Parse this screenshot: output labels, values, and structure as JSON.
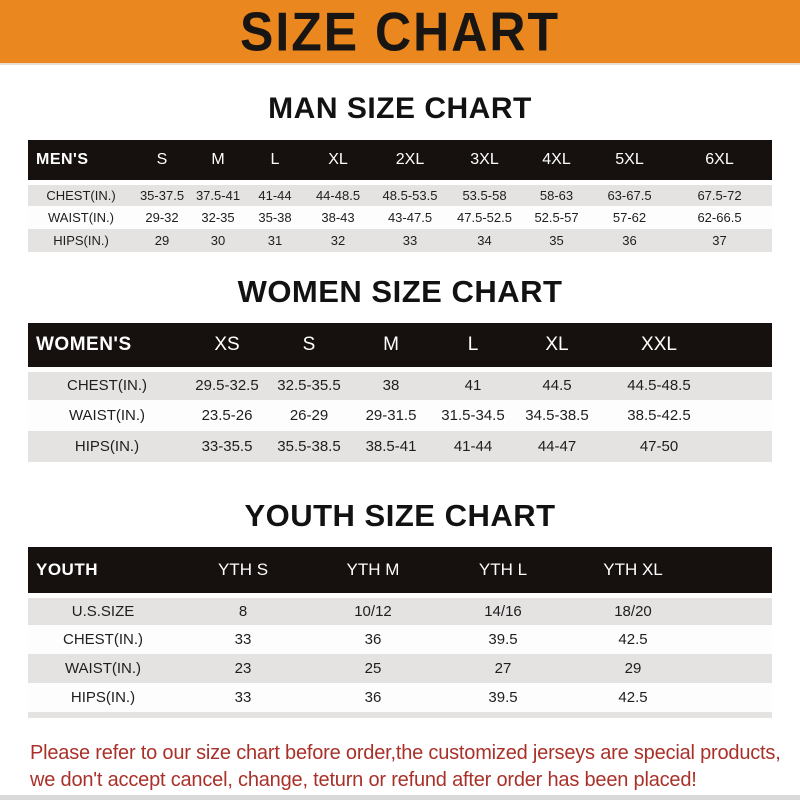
{
  "banner": {
    "title": "SIZE CHART",
    "bg_color": "#EA871E",
    "text_color": "#181512"
  },
  "sections": {
    "men": {
      "title": "MAN SIZE CHART",
      "table": {
        "label": "MEN'S",
        "columns": [
          "S",
          "M",
          "L",
          "XL",
          "2XL",
          "3XL",
          "4XL",
          "5XL",
          "6XL"
        ],
        "rows": [
          {
            "label": "CHEST(IN.)",
            "values": [
              "35-37.5",
              "37.5-41",
              "41-44",
              "44-48.5",
              "48.5-53.5",
              "53.5-58",
              "58-63",
              "63-67.5",
              "67.5-72"
            ]
          },
          {
            "label": "WAIST(IN.)",
            "values": [
              "29-32",
              "32-35",
              "35-38",
              "38-43",
              "43-47.5",
              "47.5-52.5",
              "52.5-57",
              "57-62",
              "62-66.5"
            ]
          },
          {
            "label": "HIPS(IN.)",
            "values": [
              "29",
              "30",
              "31",
              "32",
              "33",
              "34",
              "35",
              "36",
              "37"
            ]
          }
        ]
      }
    },
    "women": {
      "title": "WOMEN SIZE CHART",
      "table": {
        "label": "WOMEN'S",
        "columns": [
          "XS",
          "S",
          "M",
          "L",
          "XL",
          "XXL"
        ],
        "rows": [
          {
            "label": "CHEST(IN.)",
            "values": [
              "29.5-32.5",
              "32.5-35.5",
              "38",
              "41",
              "44.5",
              "44.5-48.5"
            ]
          },
          {
            "label": "WAIST(IN.)",
            "values": [
              "23.5-26",
              "26-29",
              "29-31.5",
              "31.5-34.5",
              "34.5-38.5",
              "38.5-42.5"
            ]
          },
          {
            "label": "HIPS(IN.)",
            "values": [
              "33-35.5",
              "35.5-38.5",
              "38.5-41",
              "41-44",
              "44-47",
              "47-50"
            ]
          }
        ]
      }
    },
    "youth": {
      "title": "YOUTH SIZE CHART",
      "table": {
        "label": "YOUTH",
        "columns": [
          "YTH S",
          "YTH M",
          "YTH L",
          "YTH XL"
        ],
        "rows": [
          {
            "label": "U.S.SIZE",
            "values": [
              "8",
              "10/12",
              "14/16",
              "18/20"
            ]
          },
          {
            "label": "CHEST(IN.)",
            "values": [
              "33",
              "36",
              "39.5",
              "42.5"
            ]
          },
          {
            "label": "WAIST(IN.)",
            "values": [
              "23",
              "25",
              "27",
              "29"
            ]
          },
          {
            "label": "HIPS(IN.)",
            "values": [
              "33",
              "36",
              "39.5",
              "42.5"
            ]
          }
        ]
      }
    }
  },
  "note": {
    "line1": "Please refer to our size chart before order,the customized jerseys are special products,",
    "line2": "we don't accept cancel, change, teturn or refund after order has been placed!",
    "color": "#A93129"
  }
}
